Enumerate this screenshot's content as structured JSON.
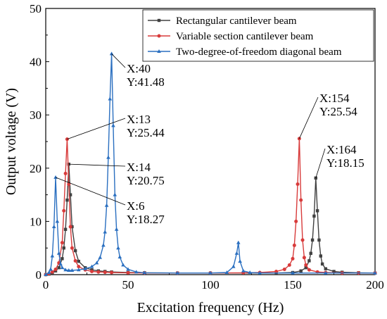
{
  "chart_data": {
    "type": "line",
    "xlabel": "Excitation frequency (Hz)",
    "ylabel": "Output voltage (V)",
    "xlim": [
      0,
      200
    ],
    "ylim": [
      0,
      50
    ],
    "xticks": [
      "0",
      "50",
      "100",
      "150",
      "200"
    ],
    "yticks": [
      "0",
      "10",
      "20",
      "30",
      "40",
      "50"
    ],
    "grid": false,
    "legend_position": "top-right",
    "series": [
      {
        "name": "Rectangular cantilever beam",
        "color": "#404040",
        "marker": "square",
        "x": [
          0,
          2,
          4,
          6,
          8,
          10,
          11,
          12,
          13,
          14,
          15,
          16,
          18,
          20,
          24,
          28,
          32,
          36,
          40,
          50,
          60,
          80,
          100,
          120,
          140,
          150,
          155,
          158,
          160,
          161,
          162,
          163,
          164,
          165,
          166,
          167,
          168,
          170,
          175,
          180,
          190,
          200
        ],
        "y": [
          0,
          0.1,
          0.3,
          0.7,
          1.3,
          3.0,
          5.0,
          8.5,
          14.0,
          20.75,
          15.0,
          9.0,
          4.5,
          2.5,
          1.3,
          0.9,
          0.7,
          0.6,
          0.5,
          0.4,
          0.35,
          0.3,
          0.3,
          0.3,
          0.3,
          0.4,
          0.7,
          1.3,
          2.6,
          4.0,
          6.5,
          11.0,
          18.15,
          12.0,
          6.5,
          3.5,
          2.0,
          1.1,
          0.6,
          0.45,
          0.35,
          0.3
        ]
      },
      {
        "name": "Variable section cantilever beam",
        "color": "#d83b3b",
        "marker": "circle",
        "x": [
          0,
          2,
          4,
          6,
          8,
          10,
          11,
          12,
          13,
          14,
          15,
          16,
          18,
          20,
          24,
          28,
          32,
          36,
          40,
          50,
          60,
          80,
          100,
          120,
          130,
          140,
          145,
          148,
          150,
          151,
          152,
          153,
          154,
          155,
          156,
          157,
          158,
          160,
          165,
          170,
          180,
          190,
          200
        ],
        "y": [
          0,
          0.2,
          0.5,
          1.0,
          2.2,
          6.0,
          12.0,
          19.0,
          25.44,
          17.0,
          9.0,
          5.0,
          2.6,
          1.5,
          0.9,
          0.6,
          0.5,
          0.45,
          0.4,
          0.35,
          0.3,
          0.3,
          0.3,
          0.35,
          0.4,
          0.6,
          1.0,
          1.8,
          3.0,
          5.5,
          10.0,
          17.0,
          25.54,
          14.0,
          6.5,
          3.2,
          1.8,
          0.9,
          0.5,
          0.4,
          0.3,
          0.3,
          0.3
        ]
      },
      {
        "name": "Two-degree-of-freedom diagonal beam",
        "color": "#2a6fc0",
        "marker": "triangle",
        "x": [
          0,
          2,
          3,
          4,
          5,
          6,
          7,
          8,
          9,
          10,
          12,
          14,
          16,
          20,
          24,
          28,
          31,
          33,
          35,
          36,
          37,
          38,
          39,
          40,
          41,
          42,
          43,
          44,
          45,
          47,
          50,
          55,
          60,
          80,
          100,
          110,
          114,
          116,
          117,
          118,
          120,
          124,
          130,
          150,
          170,
          200
        ],
        "y": [
          0,
          0.4,
          1.0,
          3.5,
          9.0,
          18.27,
          10.0,
          4.0,
          2.0,
          1.3,
          0.9,
          0.8,
          0.8,
          0.9,
          1.1,
          1.5,
          2.2,
          3.2,
          5.5,
          8.0,
          13.0,
          22.0,
          33.0,
          41.48,
          28.0,
          15.0,
          8.5,
          5.0,
          3.3,
          1.8,
          1.0,
          0.5,
          0.35,
          0.3,
          0.3,
          0.4,
          1.5,
          4.0,
          6.0,
          2.5,
          0.7,
          0.4,
          0.3,
          0.3,
          0.3,
          0.3
        ]
      }
    ],
    "annotations": [
      {
        "x_label": "X:40",
        "y_label": "Y:41.48",
        "point_x": 40,
        "point_y": 41.48
      },
      {
        "x_label": "X:13",
        "y_label": "Y:25.44",
        "point_x": 13,
        "point_y": 25.44
      },
      {
        "x_label": "X:14",
        "y_label": "Y:20.75",
        "point_x": 14,
        "point_y": 20.75
      },
      {
        "x_label": "X:6",
        "y_label": "Y:18.27",
        "point_x": 6,
        "point_y": 18.27
      },
      {
        "x_label": "X:154",
        "y_label": "Y:25.54",
        "point_x": 154,
        "point_y": 25.54
      },
      {
        "x_label": "X:164",
        "y_label": "Y:18.15",
        "point_x": 164,
        "point_y": 18.15
      }
    ]
  }
}
